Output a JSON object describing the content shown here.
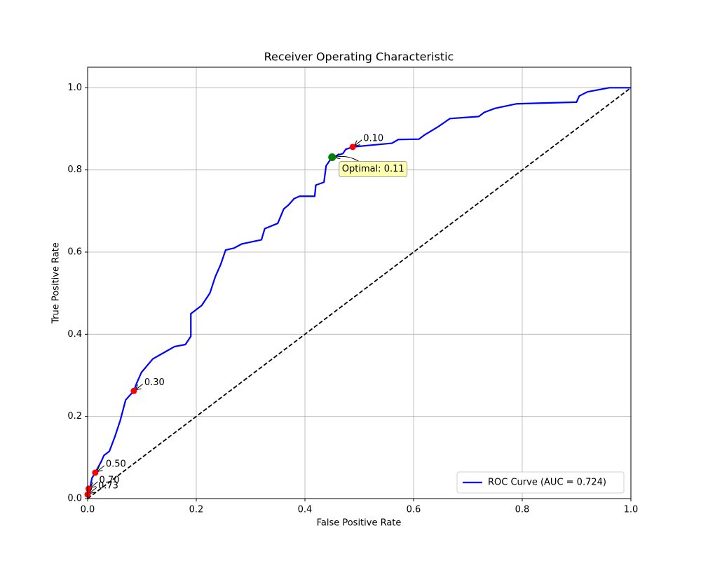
{
  "chart_data": {
    "type": "line",
    "title": "Receiver Operating Characteristic",
    "x_label": "False Positive Rate",
    "y_label": "True Positive Rate",
    "xlim": [
      0,
      1.0
    ],
    "ylim": [
      0,
      1.05
    ],
    "xticks": [
      {
        "value": 0,
        "label": "0.0"
      },
      0.2,
      0.4,
      0.6,
      0.8,
      {
        "value": 1,
        "label": "1.0"
      }
    ],
    "yticks": [
      {
        "value": 0,
        "label": "0.0"
      },
      0.2,
      0.4,
      0.6,
      0.8,
      {
        "value": 1,
        "label": "1.0"
      }
    ],
    "grid": true,
    "legend_position": "lower-right",
    "series": [
      {
        "name": "ROC Curve (AUC = 0.724)",
        "color": "#0000ff",
        "x": [
          0,
          0.005,
          0.008,
          0.014,
          0.025,
          0.03,
          0.04,
          0.05,
          0.06,
          0.07,
          0.085,
          0.09,
          0.099,
          0.12,
          0.14,
          0.16,
          0.18,
          0.19,
          0.19,
          0.21,
          0.225,
          0.235,
          0.245,
          0.254,
          0.27,
          0.284,
          0.32,
          0.326,
          0.35,
          0.361,
          0.37,
          0.38,
          0.39,
          0.418,
          0.42,
          0.435,
          0.439,
          0.45,
          0.47,
          0.475,
          0.488,
          0.52,
          0.56,
          0.572,
          0.61,
          0.62,
          0.645,
          0.667,
          0.72,
          0.73,
          0.75,
          0.79,
          0.9,
          0.905,
          0.92,
          0.96,
          1.0
        ],
        "values": [
          0,
          0.03,
          0.05,
          0.063,
          0.09,
          0.105,
          0.115,
          0.15,
          0.19,
          0.24,
          0.262,
          0.28,
          0.307,
          0.34,
          0.355,
          0.37,
          0.375,
          0.395,
          0.45,
          0.47,
          0.5,
          0.54,
          0.57,
          0.605,
          0.61,
          0.62,
          0.63,
          0.657,
          0.67,
          0.705,
          0.715,
          0.73,
          0.736,
          0.736,
          0.763,
          0.77,
          0.81,
          0.831,
          0.84,
          0.85,
          0.856,
          0.86,
          0.865,
          0.874,
          0.875,
          0.885,
          0.905,
          0.925,
          0.93,
          0.94,
          0.95,
          0.961,
          0.965,
          0.98,
          0.99,
          1.0,
          1.0
        ]
      }
    ],
    "reference_line": {
      "x": [
        0,
        1
      ],
      "y": [
        0,
        1
      ],
      "color": "#000000"
    },
    "thresholds": {
      "color": "#ff0000",
      "values": [
        0.1,
        0.3,
        0.5,
        0.7,
        0.73
      ],
      "value_labels": [
        "0.10",
        "0.30",
        "0.50",
        "0.70",
        "0.73"
      ],
      "x": [
        0.488,
        0.085,
        0.014,
        0.002,
        0.0
      ],
      "y": [
        0.856,
        0.262,
        0.063,
        0.024,
        0.01
      ]
    },
    "optimal": {
      "x": 0.45,
      "y": 0.831,
      "threshold": 0.11,
      "label": "Optimal: 0.11",
      "color": "#008000"
    }
  }
}
